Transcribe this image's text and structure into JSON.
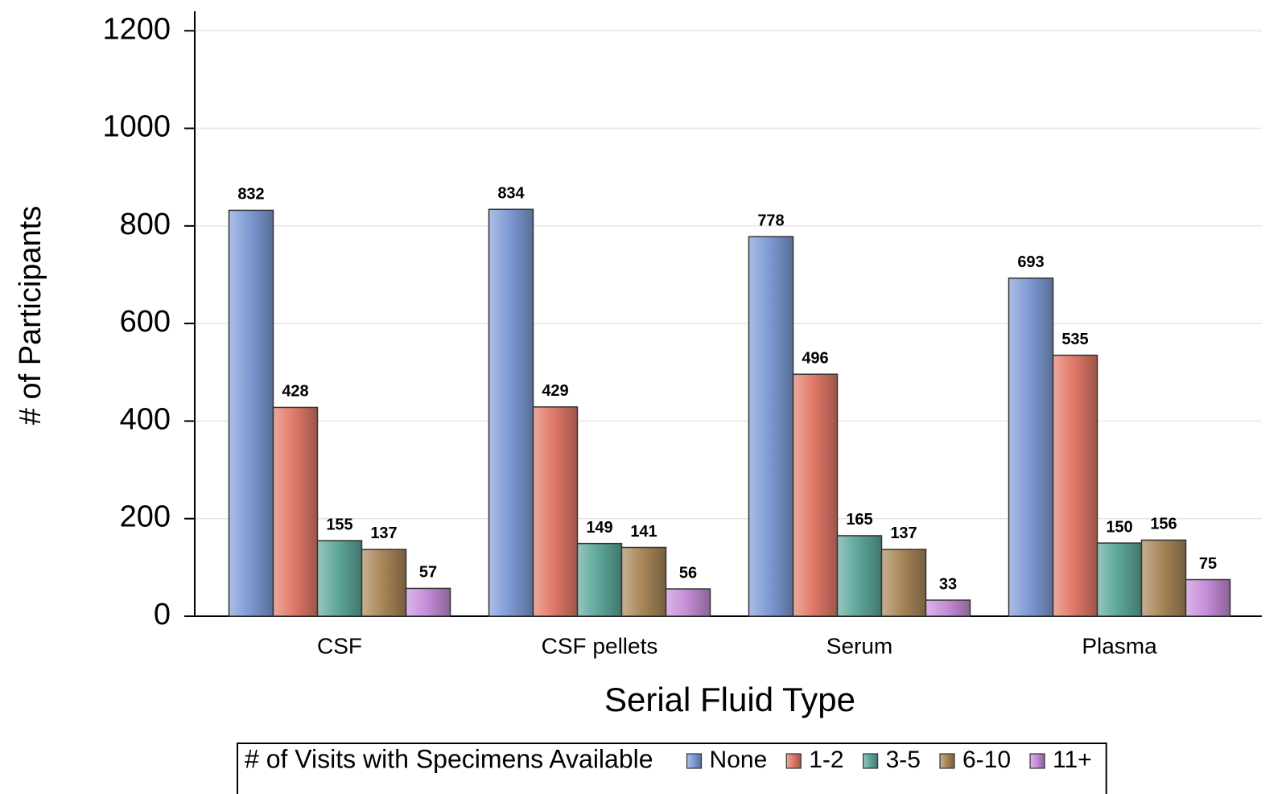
{
  "chart_data": {
    "type": "bar",
    "x_label": "Serial Fluid Type",
    "y_label": "# of Participants",
    "legend_title": "# of Visits with Specimens Available",
    "legend_position": "bottom",
    "categories": [
      "CSF",
      "CSF pellets",
      "Serum",
      "Plasma"
    ],
    "series": [
      {
        "name": "None",
        "color": "#7f9bd6",
        "values": [
          832,
          834,
          778,
          693
        ]
      },
      {
        "name": "1-2",
        "color": "#e27a69",
        "values": [
          428,
          429,
          496,
          535
        ]
      },
      {
        "name": "3-5",
        "color": "#5ea89c",
        "values": [
          155,
          149,
          165,
          150
        ]
      },
      {
        "name": "6-10",
        "color": "#a9875a",
        "values": [
          137,
          141,
          137,
          156
        ]
      },
      {
        "name": "11+",
        "color": "#c68ed9",
        "values": [
          57,
          56,
          33,
          75
        ]
      }
    ],
    "ylim": [
      0,
      1240
    ],
    "yticks": [
      0,
      200,
      400,
      600,
      800,
      1000,
      1200
    ],
    "grid": true
  }
}
